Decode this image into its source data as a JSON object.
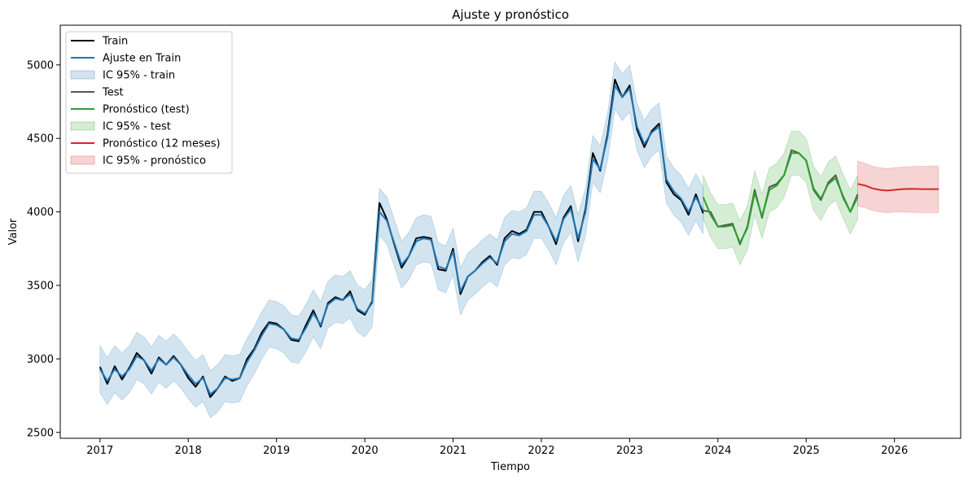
{
  "chart_data": {
    "type": "line",
    "title": "Ajuste y pronóstico",
    "xlabel": "Tiempo",
    "ylabel": "Valor",
    "xlim": [
      2016.55,
      2026.75
    ],
    "ylim": [
      2460,
      5270
    ],
    "x_ticks": [
      2017,
      2018,
      2019,
      2020,
      2021,
      2022,
      2023,
      2024,
      2025,
      2026
    ],
    "x_tick_labels": [
      "2017",
      "2018",
      "2019",
      "2020",
      "2021",
      "2022",
      "2023",
      "2024",
      "2025",
      "2026"
    ],
    "y_ticks": [
      2500,
      3000,
      3500,
      4000,
      4500,
      5000
    ],
    "y_tick_labels": [
      "2500",
      "3000",
      "3500",
      "4000",
      "4500",
      "5000"
    ],
    "grid": false,
    "legend_position": "top-left",
    "legend": [
      {
        "label": "Train",
        "kind": "line",
        "color": "#000000"
      },
      {
        "label": "Ajuste en Train",
        "kind": "line",
        "color": "#1f77b4"
      },
      {
        "label": "IC 95% - train",
        "kind": "band",
        "color": "#1f77b4"
      },
      {
        "label": "Test",
        "kind": "line",
        "color": "#555555"
      },
      {
        "label": "Pronóstico (test)",
        "kind": "line",
        "color": "#2ca02c"
      },
      {
        "label": "IC 95% - test",
        "kind": "band",
        "color": "#2ca02c"
      },
      {
        "label": "Pronóstico (12 meses)",
        "kind": "line",
        "color": "#d62728"
      },
      {
        "label": "IC 95% - pronóstico",
        "kind": "band",
        "color": "#d62728"
      }
    ],
    "series": [
      {
        "name": "Train",
        "color": "#000000",
        "x": [
          "2017-01",
          "2017-02",
          "2017-03",
          "2017-04",
          "2017-05",
          "2017-06",
          "2017-07",
          "2017-08",
          "2017-09",
          "2017-10",
          "2017-11",
          "2017-12",
          "2018-01",
          "2018-02",
          "2018-03",
          "2018-04",
          "2018-05",
          "2018-06",
          "2018-07",
          "2018-08",
          "2018-09",
          "2018-10",
          "2018-11",
          "2018-12",
          "2019-01",
          "2019-02",
          "2019-03",
          "2019-04",
          "2019-05",
          "2019-06",
          "2019-07",
          "2019-08",
          "2019-09",
          "2019-10",
          "2019-11",
          "2019-12",
          "2020-01",
          "2020-02",
          "2020-03",
          "2020-04",
          "2020-05",
          "2020-06",
          "2020-07",
          "2020-08",
          "2020-09",
          "2020-10",
          "2020-11",
          "2020-12",
          "2021-01",
          "2021-02",
          "2021-03",
          "2021-04",
          "2021-05",
          "2021-06",
          "2021-07",
          "2021-08",
          "2021-09",
          "2021-10",
          "2021-11",
          "2021-12",
          "2022-01",
          "2022-02",
          "2022-03",
          "2022-04",
          "2022-05",
          "2022-06",
          "2022-07",
          "2022-08",
          "2022-09",
          "2022-10",
          "2022-11",
          "2022-12",
          "2023-01",
          "2023-02",
          "2023-03",
          "2023-04",
          "2023-05",
          "2023-06",
          "2023-07",
          "2023-08",
          "2023-09",
          "2023-10",
          "2023-11"
        ],
        "values": [
          2945,
          2830,
          2950,
          2860,
          2940,
          3040,
          2990,
          2900,
          3010,
          2960,
          3020,
          2960,
          2870,
          2810,
          2880,
          2740,
          2800,
          2880,
          2850,
          2870,
          3000,
          3070,
          3180,
          3250,
          3240,
          3200,
          3130,
          3120,
          3230,
          3330,
          3220,
          3380,
          3420,
          3400,
          3460,
          3330,
          3300,
          3390,
          4060,
          3950,
          3780,
          3620,
          3700,
          3820,
          3830,
          3820,
          3610,
          3600,
          3750,
          3440,
          3560,
          3600,
          3660,
          3700,
          3640,
          3820,
          3870,
          3850,
          3880,
          4000,
          4000,
          3900,
          3780,
          3960,
          4040,
          3800,
          4020,
          4400,
          4280,
          4530,
          4900,
          4780,
          4860,
          4560,
          4440,
          4550,
          4600,
          4200,
          4120,
          4080,
          3980,
          4120,
          3990
        ]
      },
      {
        "name": "Ajuste en Train",
        "color": "#1f77b4",
        "x": [
          "2017-01",
          "2017-02",
          "2017-03",
          "2017-04",
          "2017-05",
          "2017-06",
          "2017-07",
          "2017-08",
          "2017-09",
          "2017-10",
          "2017-11",
          "2017-12",
          "2018-01",
          "2018-02",
          "2018-03",
          "2018-04",
          "2018-05",
          "2018-06",
          "2018-07",
          "2018-08",
          "2018-09",
          "2018-10",
          "2018-11",
          "2018-12",
          "2019-01",
          "2019-02",
          "2019-03",
          "2019-04",
          "2019-05",
          "2019-06",
          "2019-07",
          "2019-08",
          "2019-09",
          "2019-10",
          "2019-11",
          "2019-12",
          "2020-01",
          "2020-02",
          "2020-03",
          "2020-04",
          "2020-05",
          "2020-06",
          "2020-07",
          "2020-08",
          "2020-09",
          "2020-10",
          "2020-11",
          "2020-12",
          "2021-01",
          "2021-02",
          "2021-03",
          "2021-04",
          "2021-05",
          "2021-06",
          "2021-07",
          "2021-08",
          "2021-09",
          "2021-10",
          "2021-11",
          "2021-12",
          "2022-01",
          "2022-02",
          "2022-03",
          "2022-04",
          "2022-05",
          "2022-06",
          "2022-07",
          "2022-08",
          "2022-09",
          "2022-10",
          "2022-11",
          "2022-12",
          "2023-01",
          "2023-02",
          "2023-03",
          "2023-04",
          "2023-05",
          "2023-06",
          "2023-07",
          "2023-08",
          "2023-09",
          "2023-10",
          "2023-11"
        ],
        "values": [
          2930,
          2850,
          2930,
          2880,
          2930,
          3020,
          2990,
          2920,
          3000,
          2960,
          3010,
          2960,
          2890,
          2830,
          2870,
          2760,
          2800,
          2870,
          2860,
          2870,
          2980,
          3060,
          3160,
          3240,
          3230,
          3200,
          3140,
          3130,
          3210,
          3310,
          3230,
          3370,
          3410,
          3400,
          3440,
          3340,
          3310,
          3380,
          4000,
          3940,
          3790,
          3640,
          3700,
          3800,
          3820,
          3810,
          3630,
          3610,
          3730,
          3460,
          3560,
          3600,
          3650,
          3690,
          3650,
          3800,
          3850,
          3840,
          3870,
          3980,
          3980,
          3900,
          3800,
          3950,
          4020,
          3820,
          4000,
          4360,
          4290,
          4510,
          4860,
          4780,
          4840,
          4580,
          4460,
          4540,
          4580,
          4220,
          4140,
          4090,
          4000,
          4100,
          4010
        ]
      },
      {
        "name": "Test",
        "color": "#555555",
        "x": [
          "2023-11",
          "2023-12",
          "2024-01",
          "2024-02",
          "2024-03",
          "2024-04",
          "2024-05",
          "2024-06",
          "2024-07",
          "2024-08",
          "2024-09",
          "2024-10",
          "2024-11",
          "2024-12",
          "2025-01",
          "2025-02",
          "2025-03",
          "2025-04",
          "2025-05",
          "2025-06",
          "2025-07",
          "2025-08"
        ],
        "values": [
          4010,
          4000,
          3900,
          3910,
          3920,
          3780,
          3900,
          4150,
          3960,
          4170,
          4190,
          4250,
          4420,
          4400,
          4350,
          4150,
          4080,
          4200,
          4250,
          4100,
          4000,
          4120
        ]
      },
      {
        "name": "Pronóstico (test)",
        "color": "#2ca02c",
        "x": [
          "2023-11",
          "2023-12",
          "2024-01",
          "2024-02",
          "2024-03",
          "2024-04",
          "2024-05",
          "2024-06",
          "2024-07",
          "2024-08",
          "2024-09",
          "2024-10",
          "2024-11",
          "2024-12",
          "2025-01",
          "2025-02",
          "2025-03",
          "2025-04",
          "2025-05",
          "2025-06",
          "2025-07",
          "2025-08"
        ],
        "values": [
          4100,
          3980,
          3900,
          3900,
          3910,
          3790,
          3890,
          4130,
          3970,
          4150,
          4180,
          4250,
          4400,
          4400,
          4350,
          4160,
          4090,
          4190,
          4230,
          4110,
          4000,
          4100
        ]
      },
      {
        "name": "Pronóstico (12 meses)",
        "color": "#d62728",
        "x": [
          "2025-08",
          "2025-09",
          "2025-10",
          "2025-11",
          "2025-12",
          "2026-01",
          "2026-02",
          "2026-03",
          "2026-04",
          "2026-05",
          "2026-06",
          "2026-07"
        ],
        "values": [
          4190,
          4180,
          4160,
          4150,
          4145,
          4150,
          4155,
          4157,
          4156,
          4155,
          4155,
          4155
        ]
      }
    ],
    "bands": [
      {
        "name": "IC 95% - train",
        "color": "#1f77b4",
        "x": [
          "2017-01",
          "2017-02",
          "2017-03",
          "2017-04",
          "2017-05",
          "2017-06",
          "2017-07",
          "2017-08",
          "2017-09",
          "2017-10",
          "2017-11",
          "2017-12",
          "2018-01",
          "2018-02",
          "2018-03",
          "2018-04",
          "2018-05",
          "2018-06",
          "2018-07",
          "2018-08",
          "2018-09",
          "2018-10",
          "2018-11",
          "2018-12",
          "2019-01",
          "2019-02",
          "2019-03",
          "2019-04",
          "2019-05",
          "2019-06",
          "2019-07",
          "2019-08",
          "2019-09",
          "2019-10",
          "2019-11",
          "2019-12",
          "2020-01",
          "2020-02",
          "2020-03",
          "2020-04",
          "2020-05",
          "2020-06",
          "2020-07",
          "2020-08",
          "2020-09",
          "2020-10",
          "2020-11",
          "2020-12",
          "2021-01",
          "2021-02",
          "2021-03",
          "2021-04",
          "2021-05",
          "2021-06",
          "2021-07",
          "2021-08",
          "2021-09",
          "2021-10",
          "2021-11",
          "2021-12",
          "2022-01",
          "2022-02",
          "2022-03",
          "2022-04",
          "2022-05",
          "2022-06",
          "2022-07",
          "2022-08",
          "2022-09",
          "2022-10",
          "2022-11",
          "2022-12",
          "2023-01",
          "2023-02",
          "2023-03",
          "2023-04",
          "2023-05",
          "2023-06",
          "2023-07",
          "2023-08",
          "2023-09",
          "2023-10",
          "2023-11"
        ],
        "lower": [
          2770,
          2690,
          2770,
          2720,
          2770,
          2860,
          2830,
          2760,
          2840,
          2800,
          2850,
          2800,
          2730,
          2670,
          2710,
          2600,
          2640,
          2710,
          2700,
          2710,
          2820,
          2900,
          3000,
          3080,
          3070,
          3040,
          2980,
          2970,
          3050,
          3150,
          3070,
          3210,
          3250,
          3240,
          3280,
          3180,
          3150,
          3220,
          3840,
          3780,
          3630,
          3480,
          3540,
          3640,
          3660,
          3650,
          3470,
          3450,
          3570,
          3300,
          3400,
          3440,
          3490,
          3530,
          3490,
          3640,
          3690,
          3680,
          3710,
          3820,
          3820,
          3740,
          3640,
          3790,
          3860,
          3660,
          3840,
          4200,
          4130,
          4350,
          4700,
          4620,
          4680,
          4420,
          4300,
          4380,
          4420,
          4060,
          3980,
          3930,
          3840,
          3940,
          3850
        ],
        "upper": [
          3090,
          3010,
          3090,
          3040,
          3090,
          3180,
          3150,
          3080,
          3160,
          3120,
          3170,
          3120,
          3050,
          2990,
          3030,
          2920,
          2960,
          3030,
          3020,
          3030,
          3140,
          3220,
          3320,
          3400,
          3390,
          3360,
          3300,
          3290,
          3370,
          3470,
          3390,
          3530,
          3570,
          3560,
          3600,
          3500,
          3470,
          3540,
          4160,
          4100,
          3950,
          3800,
          3860,
          3960,
          3980,
          3970,
          3790,
          3770,
          3890,
          3620,
          3720,
          3760,
          3810,
          3850,
          3810,
          3960,
          4010,
          4000,
          4030,
          4140,
          4140,
          4060,
          3960,
          4110,
          4180,
          3980,
          4160,
          4520,
          4450,
          4670,
          5020,
          4940,
          5000,
          4740,
          4620,
          4700,
          4740,
          4380,
          4300,
          4250,
          4160,
          4260,
          4170
        ]
      },
      {
        "name": "IC 95% - test",
        "color": "#2ca02c",
        "x": [
          "2023-11",
          "2023-12",
          "2024-01",
          "2024-02",
          "2024-03",
          "2024-04",
          "2024-05",
          "2024-06",
          "2024-07",
          "2024-08",
          "2024-09",
          "2024-10",
          "2024-11",
          "2024-12",
          "2025-01",
          "2025-02",
          "2025-03",
          "2025-04",
          "2025-05",
          "2025-06",
          "2025-07",
          "2025-08"
        ],
        "lower": [
          3950,
          3830,
          3750,
          3750,
          3760,
          3640,
          3740,
          3980,
          3820,
          4000,
          4030,
          4100,
          4250,
          4250,
          4200,
          4010,
          3940,
          4040,
          4080,
          3960,
          3850,
          3950
        ],
        "upper": [
          4250,
          4130,
          4050,
          4050,
          4060,
          3940,
          4040,
          4280,
          4120,
          4300,
          4330,
          4400,
          4550,
          4550,
          4500,
          4310,
          4240,
          4340,
          4380,
          4260,
          4150,
          4250
        ]
      },
      {
        "name": "IC 95% - pronóstico",
        "color": "#d62728",
        "x": [
          "2025-08",
          "2025-09",
          "2025-10",
          "2025-11",
          "2025-12",
          "2026-01",
          "2026-02",
          "2026-03",
          "2026-04",
          "2026-05",
          "2026-06",
          "2026-07"
        ],
        "lower": [
          4040,
          4030,
          4010,
          4000,
          3995,
          4000,
          4000,
          3998,
          3996,
          3995,
          3995,
          3995
        ],
        "upper": [
          4345,
          4330,
          4310,
          4300,
          4295,
          4300,
          4305,
          4308,
          4310,
          4310,
          4312,
          4312
        ]
      }
    ]
  }
}
